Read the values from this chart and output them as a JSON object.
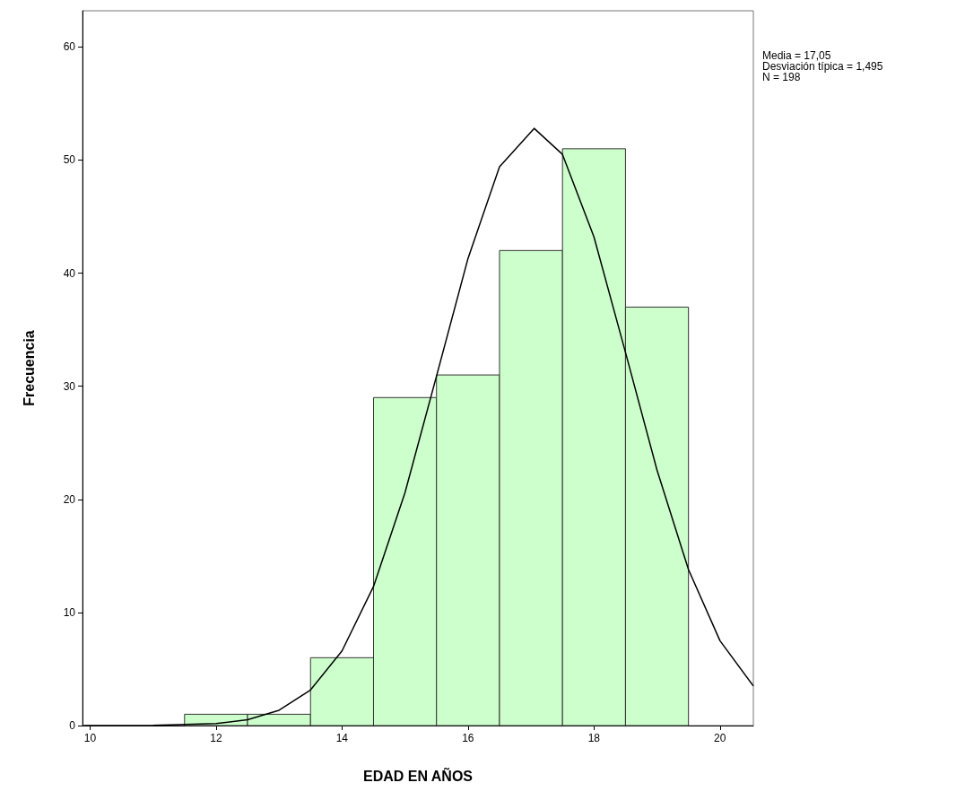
{
  "chart_data": {
    "type": "histogram",
    "xlabel": "EDAD EN AÑOS",
    "ylabel": "Frecuencia",
    "xlim": [
      9.88,
      20.53
    ],
    "xticks": [
      10,
      12,
      14,
      16,
      18,
      20
    ],
    "ylim": [
      0,
      63.2
    ],
    "yticks": [
      0,
      10,
      20,
      30,
      40,
      50,
      60
    ],
    "grid": false,
    "annotations": [
      "Media = 17,05",
      "Desviación típica = 1,495",
      "N = 198"
    ],
    "series": [
      {
        "type": "histogram",
        "color": "#ccffcc",
        "bins": [
          11.5,
          12.5,
          13.5,
          14.5,
          15.5,
          16.5,
          17.5,
          18.5,
          19.5
        ],
        "values": [
          1,
          1,
          6,
          29,
          31,
          42,
          51,
          37
        ]
      },
      {
        "type": "line",
        "color": "#000000",
        "marker": "none",
        "x": [
          9.9,
          11,
          12,
          12.5,
          13,
          13.5,
          14,
          14.5,
          15,
          15.5,
          16,
          16.5,
          17.05,
          17.5,
          18,
          18.5,
          19,
          19.5,
          20,
          20.53
        ],
        "values": [
          0,
          0.01,
          0.17,
          0.52,
          1.35,
          3.15,
          6.6,
          12.3,
          20.6,
          30.9,
          41.3,
          49.4,
          52.8,
          50.5,
          43.2,
          33,
          22.6,
          13.8,
          7.5,
          3.5
        ]
      }
    ]
  }
}
